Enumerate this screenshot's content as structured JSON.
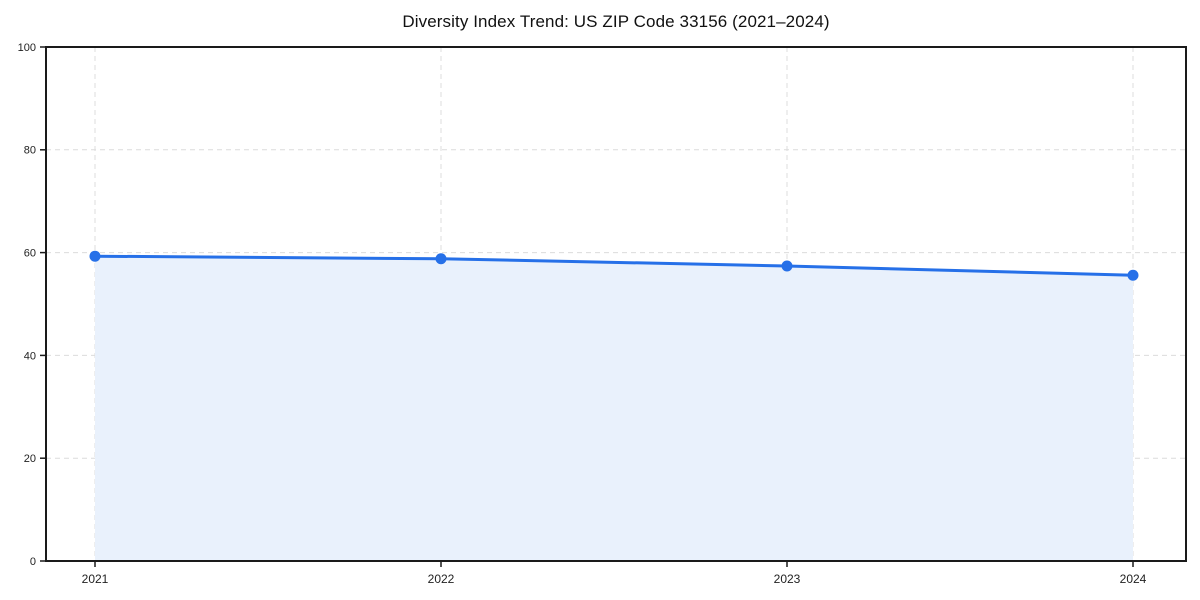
{
  "chart_data": {
    "type": "line",
    "title": "Diversity Index Trend: US ZIP Code 33156 (2021–2024)",
    "categories": [
      "2021",
      "2022",
      "2023",
      "2024"
    ],
    "series": [
      {
        "name": "Diversity Index",
        "values": [
          59.3,
          58.8,
          57.4,
          55.6
        ]
      }
    ],
    "xlabel": "",
    "ylabel": "",
    "ylim": [
      0,
      100
    ],
    "y_ticks": [
      0,
      20,
      40,
      60,
      80,
      100
    ],
    "grid": "dashed-both-axes",
    "legend_position": "none",
    "area_fill_under_line": true,
    "marker": "circle",
    "colors": {
      "line": "#2670e8",
      "marker": "#2670e8",
      "area": "#e9f1fc",
      "grid": "#dcdcdc",
      "spine": "#1a1a1a",
      "tick_text": "#222222",
      "title_text": "#111111",
      "background": "#ffffff"
    }
  }
}
